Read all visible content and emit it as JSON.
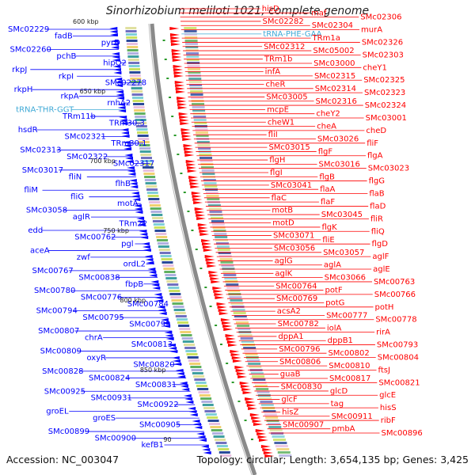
{
  "title": "Sinorhizobium meliloti 1021, complete genome",
  "footer": {
    "accession": "Accession: NC_003047",
    "summary": "Topology: circular; Length: 3,654,135 bp; Genes: 3,425"
  },
  "colors": {
    "forward_strand": "#ff0000",
    "reverse_strand": "#0000ff",
    "trna": "#3fa9d6",
    "backbone": "#8a8a8a",
    "tick_mark": "#2a9a2a"
  },
  "scale_ticks": [
    "600 kbp",
    "650 kbp",
    "700 kbp",
    "750 kbp",
    "800 kbp",
    "850 kbp",
    "90"
  ],
  "forward_genes": [
    "hisD",
    "maf",
    "SMc02306",
    "SMc02282",
    "SMc02304",
    "murA",
    "tRNA-PHE-GAA",
    "TRm1a",
    "SMc02326",
    "SMc02312",
    "SMc05002",
    "SMc02303",
    "TRm1b",
    "SMc03000",
    "cheY1",
    "infA",
    "SMc02315",
    "SMc02325",
    "cheR",
    "SMc02314",
    "SMc02323",
    "SMc03005",
    "SMc02316",
    "SMc02324",
    "mcpE",
    "cheY2",
    "SMc03001",
    "cheW1",
    "cheA",
    "cheD",
    "fliI",
    "SMc03026",
    "fliF",
    "SMc03015",
    "flgF",
    "flgA",
    "flgH",
    "SMc03016",
    "SMc03023",
    "flgI",
    "flgB",
    "flgG",
    "SMc03041",
    "flaA",
    "flaB",
    "flaC",
    "flaF",
    "flaD",
    "motB",
    "SMc03045",
    "fliR",
    "motD",
    "flgK",
    "fliQ",
    "SMc03071",
    "fliE",
    "flgD",
    "SMc03056",
    "SMc03057",
    "aglF",
    "aglG",
    "aglA",
    "aglE",
    "aglK",
    "SMc03066",
    "SMc00763",
    "SMc00764",
    "potF",
    "SMc00766",
    "SMc00769",
    "potG",
    "potH",
    "acsA2",
    "SMc00777",
    "SMc00778",
    "SMc00782",
    "iolA",
    "rirA",
    "dppA1",
    "dppB1",
    "SMc00793",
    "SMc00796",
    "SMc00802",
    "SMc00804",
    "SMc00806",
    "SMc00810",
    "ftsJ",
    "guaB",
    "SMc00817",
    "SMc00821",
    "SMc00830",
    "glcD",
    "glcE",
    "glcF",
    "tag",
    "hisS",
    "hisZ",
    "SMc00911",
    "ribF",
    "SMc00907",
    "pmbA",
    "SMc00896"
  ],
  "reverse_genes": [
    "SMc02229",
    "fadB",
    "pyrD",
    "SMc02260",
    "pchB",
    "hipO2",
    "rkpJ",
    "rkpI",
    "SMc02278",
    "rkpH",
    "rkpA",
    "rnhA2",
    "tRNA-THR-GGT",
    "TRm11b",
    "TRm30.3",
    "hsdR",
    "SMc02321",
    "TRm30.1",
    "SMc02313",
    "SMc02322",
    "SMc02317",
    "SMc03017",
    "fliN",
    "flhB",
    "fliM",
    "fliG",
    "motA",
    "SMc03058",
    "aglR",
    "TRm22",
    "edd",
    "SMc00762",
    "pgl",
    "aceA",
    "zwf",
    "ordL2",
    "SMc00767",
    "SMc00838",
    "fbpB",
    "SMc00780",
    "SMc00776",
    "SMc00784",
    "SMc00794",
    "SMc00795",
    "SMc00799",
    "SMc00807",
    "chrA",
    "SMc00813",
    "SMc00809",
    "oxyR",
    "SMc00820",
    "SMc00828",
    "SMc00824",
    "SMc00831",
    "SMc00925",
    "SMc00931",
    "SMc00922",
    "groEL",
    "groES",
    "SMc00905",
    "SMc00899",
    "SMc00900",
    "kefB1"
  ],
  "trna_genes": [
    "tRNA-PHE-GAA",
    "tRNA-THR-GGT"
  ]
}
